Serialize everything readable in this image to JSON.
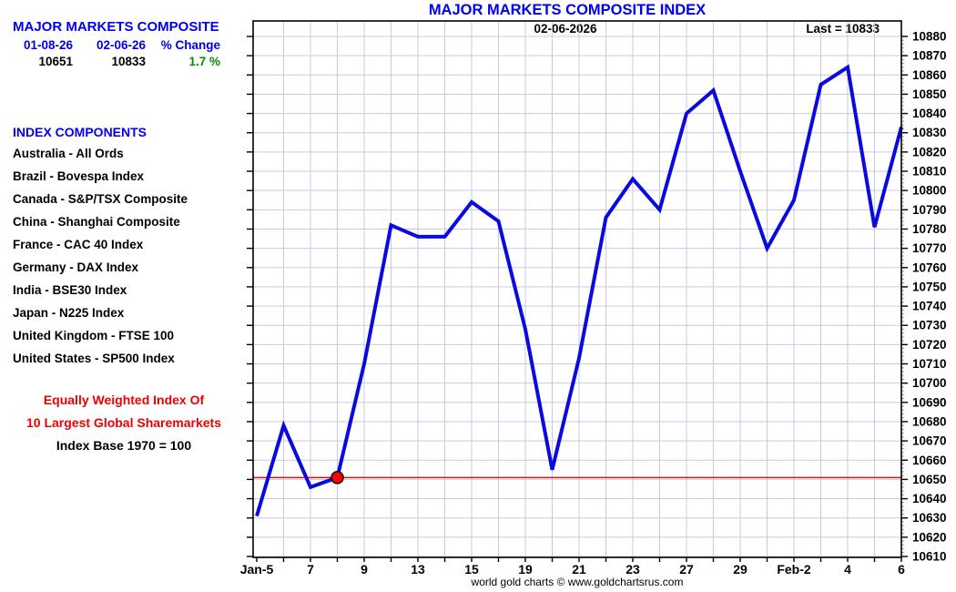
{
  "sidebar": {
    "title": "MAJOR MARKETS COMPOSITE",
    "stats": {
      "col1_header": "01-08-26",
      "col2_header": "02-06-26",
      "col3_header": "% Change",
      "col1_value": "10651",
      "col2_value": "10833",
      "col3_value": "1.7 %"
    },
    "components_header": "INDEX COMPONENTS",
    "components": [
      "Australia - All Ords",
      "Brazil - Bovespa Index",
      "Canada - S&P/TSX Composite",
      "China - Shanghai Composite",
      "France - CAC 40 Index",
      "Germany - DAX Index",
      "India - BSE30 Index",
      "Japan - N225 Index",
      "United Kingdom - FTSE 100",
      "United States - SP500 Index"
    ],
    "note_line1": "Equally Weighted Index Of",
    "note_line2": "10 Largest Global Sharemarkets",
    "note_line3": "Index Base 1970 = 100"
  },
  "chart": {
    "title": "MAJOR MARKETS COMPOSITE INDEX",
    "date_annotation": "02-06-2026",
    "last_label": "Last = 10833",
    "footer": "world gold charts © www.goldchartsrus.com"
  },
  "colors": {
    "blue_text": "#0000ee",
    "green_text": "#008f00",
    "red_text": "#ee0000",
    "line_blue": "#0a0ae0",
    "reference_red": "#ff0000",
    "grid": "#c9c9e4",
    "axis_black": "#000000"
  },
  "chart_data": {
    "type": "line",
    "title": "MAJOR MARKETS COMPOSITE INDEX",
    "x": [
      "Jan-5",
      "Jan-6",
      "Jan-7",
      "Jan-8",
      "Jan-9",
      "Jan-12",
      "Jan-13",
      "Jan-14",
      "Jan-15",
      "Jan-16",
      "Jan-19",
      "Jan-20",
      "Jan-21",
      "Jan-22",
      "Jan-23",
      "Jan-26",
      "Jan-27",
      "Jan-28",
      "Jan-29",
      "Jan-30",
      "Feb-2",
      "Feb-3",
      "Feb-4",
      "Feb-5",
      "Feb-6"
    ],
    "values": [
      10631,
      10678,
      10646,
      10651,
      10710,
      10782,
      10776,
      10776,
      10794,
      10784,
      10728,
      10655,
      10713,
      10786,
      10806,
      10790,
      10840,
      10852,
      10810,
      10770,
      10795,
      10855,
      10864,
      10781,
      10833
    ],
    "x_tick_labels": [
      "Jan-5",
      "7",
      "9",
      "13",
      "15",
      "19",
      "21",
      "23",
      "27",
      "29",
      "Feb-2",
      "4",
      "6"
    ],
    "x_tick_every": 2,
    "xlabel": "",
    "ylabel": "",
    "ylim": [
      10610,
      10880
    ],
    "ytick_step": 10,
    "grid": true,
    "legend": "none",
    "reference_line": 10651,
    "highlight_point": {
      "x": "Jan-8",
      "y": 10651
    },
    "last_value": 10833
  }
}
